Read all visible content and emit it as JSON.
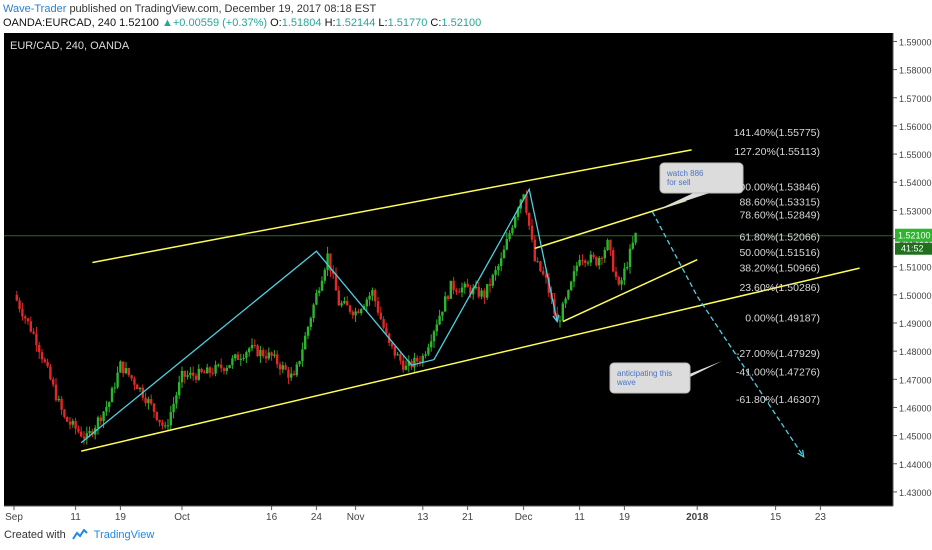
{
  "header": {
    "author": "Wave-Trader",
    "published": "published on TradingView.com, December 19, 2017 08:18 EST",
    "symbol": "OANDA:EURCAD, 240",
    "last": "1.52100",
    "arrow": "▲",
    "change": "+0.00559 (+0.37%)",
    "ohlc_o_label": "O:",
    "ohlc_o": "1.51804",
    "ohlc_h_label": "H:",
    "ohlc_h": "1.52144",
    "ohlc_l_label": "L:",
    "ohlc_l": "1.51770",
    "ohlc_c_label": "C:",
    "ohlc_c": "1.52100"
  },
  "chart_data": {
    "type": "candlestick",
    "title": "EUR/CAD, 240, OANDA",
    "ylim": [
      1.425,
      1.593
    ],
    "y_ticks": [
      "1.59000",
      "1.58000",
      "1.57000",
      "1.56000",
      "1.55000",
      "1.54000",
      "1.53000",
      "1.52000",
      "1.51000",
      "1.50000",
      "1.49000",
      "1.48000",
      "1.47000",
      "1.46000",
      "1.45000",
      "1.44000",
      "1.43000"
    ],
    "x_ticks": [
      {
        "label": "Sep",
        "day": 0
      },
      {
        "label": "11",
        "day": 11
      },
      {
        "label": "19",
        "day": 19
      },
      {
        "label": "Oct",
        "day": 30
      },
      {
        "label": "16",
        "day": 46
      },
      {
        "label": "24",
        "day": 54
      },
      {
        "label": "Nov",
        "day": 61
      },
      {
        "label": "13",
        "day": 73
      },
      {
        "label": "21",
        "day": 81
      },
      {
        "label": "Dec",
        "day": 91
      },
      {
        "label": "11",
        "day": 101
      },
      {
        "label": "19",
        "day": 109
      },
      {
        "label": "2018",
        "day": 122
      },
      {
        "label": "15",
        "day": 136
      },
      {
        "label": "23",
        "day": 144
      }
    ],
    "last_price": "1.52100",
    "countdown": "41:52",
    "price_path": [
      {
        "day": 0,
        "price": 1.5
      },
      {
        "day": 4,
        "price": 1.484
      },
      {
        "day": 7,
        "price": 1.467
      },
      {
        "day": 9,
        "price": 1.456
      },
      {
        "day": 13,
        "price": 1.449
      },
      {
        "day": 17,
        "price": 1.462
      },
      {
        "day": 19,
        "price": 1.475
      },
      {
        "day": 22,
        "price": 1.468
      },
      {
        "day": 25,
        "price": 1.459
      },
      {
        "day": 27,
        "price": 1.452
      },
      {
        "day": 30,
        "price": 1.471
      },
      {
        "day": 34,
        "price": 1.472
      },
      {
        "day": 38,
        "price": 1.475
      },
      {
        "day": 42,
        "price": 1.481
      },
      {
        "day": 46,
        "price": 1.478
      },
      {
        "day": 50,
        "price": 1.47
      },
      {
        "day": 54,
        "price": 1.5
      },
      {
        "day": 56,
        "price": 1.514
      },
      {
        "day": 58,
        "price": 1.497
      },
      {
        "day": 61,
        "price": 1.494
      },
      {
        "day": 64,
        "price": 1.501
      },
      {
        "day": 67,
        "price": 1.482
      },
      {
        "day": 70,
        "price": 1.474
      },
      {
        "day": 73,
        "price": 1.478
      },
      {
        "day": 76,
        "price": 1.493
      },
      {
        "day": 78,
        "price": 1.503
      },
      {
        "day": 81,
        "price": 1.502
      },
      {
        "day": 84,
        "price": 1.5
      },
      {
        "day": 87,
        "price": 1.512
      },
      {
        "day": 90,
        "price": 1.532
      },
      {
        "day": 91,
        "price": 1.537
      },
      {
        "day": 93,
        "price": 1.512
      },
      {
        "day": 95,
        "price": 1.505
      },
      {
        "day": 97,
        "price": 1.49
      },
      {
        "day": 99,
        "price": 1.5
      },
      {
        "day": 101,
        "price": 1.514
      },
      {
        "day": 104,
        "price": 1.512
      },
      {
        "day": 106,
        "price": 1.518
      },
      {
        "day": 108,
        "price": 1.502
      },
      {
        "day": 111,
        "price": 1.521
      }
    ],
    "drawings": {
      "channel_upper": [
        {
          "day": 14,
          "price": 1.5115
        },
        {
          "day": 121,
          "price": 1.5515
        }
      ],
      "channel_lower": [
        {
          "day": 12,
          "price": 1.4445
        },
        {
          "day": 151,
          "price": 1.5095
        }
      ],
      "sub_channel_upper": [
        {
          "day": 93,
          "price": 1.5165
        },
        {
          "day": 120,
          "price": 1.5335
        }
      ],
      "sub_channel_lower": [
        {
          "day": 98,
          "price": 1.4905
        },
        {
          "day": 122,
          "price": 1.5125
        }
      ],
      "wave_path": [
        {
          "day": 12,
          "price": 1.4475
        },
        {
          "day": 54,
          "price": 1.5155
        },
        {
          "day": 71,
          "price": 1.475
        },
        {
          "day": 75,
          "price": 1.477
        },
        {
          "day": 92,
          "price": 1.5375
        },
        {
          "day": 97,
          "price": 1.4905
        }
      ],
      "projection": [
        {
          "day": 114,
          "price": 1.5295
        },
        {
          "day": 122,
          "price": 1.4995
        },
        {
          "day": 141,
          "price": 1.4425
        }
      ]
    },
    "fib_levels": [
      {
        "label": "141.40%(1.55775)",
        "value": 1.55775
      },
      {
        "label": "127.20%(1.55113)",
        "value": 1.55113
      },
      {
        "label": "100.00%(1.53846)",
        "value": 1.53846
      },
      {
        "label": "88.60%(1.53315)",
        "value": 1.53315
      },
      {
        "label": "78.60%(1.52849)",
        "value": 1.52849
      },
      {
        "label": "61.80%(1.52066)",
        "value": 1.52066
      },
      {
        "label": "50.00%(1.51516)",
        "value": 1.51516
      },
      {
        "label": "38.20%(1.50966)",
        "value": 1.50966
      },
      {
        "label": "23.60%(1.50286)",
        "value": 1.50286
      },
      {
        "label": "0.00%(1.49187)",
        "value": 1.49187
      },
      {
        "label": "-27.00%(1.47929)",
        "value": 1.47929
      },
      {
        "label": "-41.00%(1.47276)",
        "value": 1.47276
      },
      {
        "label": "-61.80%(1.46307)",
        "value": 1.46307
      }
    ],
    "annotations": [
      {
        "text": "watch 886 for sell"
      },
      {
        "text": "anticipating this wave"
      }
    ],
    "colors": {
      "background": "#000000",
      "bull": "#2db52d",
      "bear": "#e02828",
      "channel": "#ffff55",
      "wave": "#4dd0e1",
      "fib_label": "#d8d8d8",
      "last_price_line": "#1f6f1f",
      "last_price_box": "#2db52d"
    }
  },
  "footer": {
    "created_with": "Created with",
    "brand": "TradingView"
  }
}
